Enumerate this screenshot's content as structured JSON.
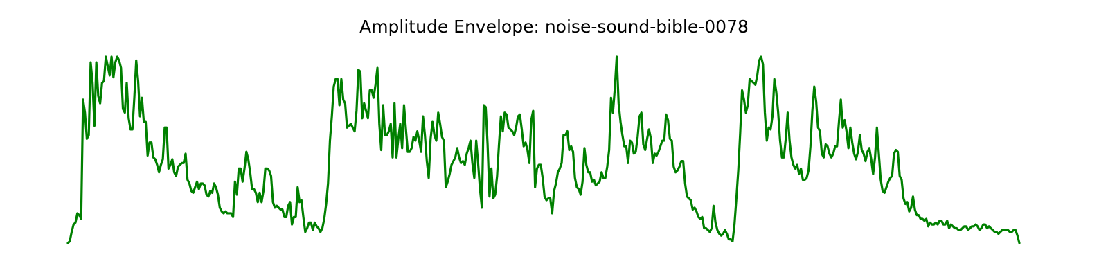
{
  "chart_data": {
    "type": "line",
    "title": "Amplitude Envelope: noise-sound-bible-0078",
    "xlabel": "",
    "ylabel": "",
    "axes_visible": false,
    "grid": false,
    "legend": "none",
    "ylim": [
      0,
      1
    ],
    "series": [
      {
        "color": "#008000",
        "values": [
          0.0,
          0.01,
          0.06,
          0.1,
          0.11,
          0.16,
          0.15,
          0.13,
          0.77,
          0.7,
          0.56,
          0.58,
          0.97,
          0.86,
          0.63,
          0.97,
          0.79,
          0.75,
          0.86,
          0.87,
          1.0,
          0.95,
          0.9,
          1.0,
          0.89,
          0.97,
          1.0,
          0.98,
          0.94,
          0.72,
          0.7,
          0.86,
          0.67,
          0.61,
          0.61,
          0.78,
          0.98,
          0.87,
          0.68,
          0.78,
          0.65,
          0.65,
          0.47,
          0.54,
          0.54,
          0.46,
          0.45,
          0.42,
          0.38,
          0.42,
          0.45,
          0.62,
          0.62,
          0.4,
          0.42,
          0.45,
          0.38,
          0.36,
          0.41,
          0.42,
          0.43,
          0.43,
          0.48,
          0.34,
          0.32,
          0.28,
          0.27,
          0.3,
          0.33,
          0.29,
          0.32,
          0.32,
          0.31,
          0.26,
          0.25,
          0.28,
          0.27,
          0.32,
          0.3,
          0.26,
          0.19,
          0.17,
          0.16,
          0.17,
          0.16,
          0.16,
          0.16,
          0.14,
          0.33,
          0.26,
          0.4,
          0.4,
          0.33,
          0.4,
          0.49,
          0.45,
          0.38,
          0.29,
          0.29,
          0.27,
          0.22,
          0.27,
          0.22,
          0.28,
          0.4,
          0.4,
          0.39,
          0.36,
          0.22,
          0.19,
          0.2,
          0.19,
          0.18,
          0.18,
          0.14,
          0.14,
          0.2,
          0.22,
          0.1,
          0.14,
          0.14,
          0.3,
          0.22,
          0.23,
          0.14,
          0.06,
          0.08,
          0.11,
          0.11,
          0.07,
          0.11,
          0.09,
          0.08,
          0.06,
          0.08,
          0.13,
          0.21,
          0.32,
          0.55,
          0.68,
          0.84,
          0.88,
          0.88,
          0.74,
          0.88,
          0.77,
          0.75,
          0.62,
          0.63,
          0.64,
          0.62,
          0.6,
          0.71,
          0.93,
          0.92,
          0.67,
          0.75,
          0.71,
          0.67,
          0.82,
          0.82,
          0.78,
          0.85,
          0.94,
          0.64,
          0.5,
          0.74,
          0.58,
          0.58,
          0.6,
          0.64,
          0.46,
          0.75,
          0.46,
          0.56,
          0.64,
          0.51,
          0.74,
          0.61,
          0.49,
          0.49,
          0.51,
          0.57,
          0.55,
          0.6,
          0.55,
          0.49,
          0.68,
          0.58,
          0.44,
          0.35,
          0.56,
          0.65,
          0.58,
          0.55,
          0.7,
          0.64,
          0.57,
          0.55,
          0.3,
          0.33,
          0.37,
          0.42,
          0.44,
          0.46,
          0.51,
          0.46,
          0.43,
          0.44,
          0.42,
          0.48,
          0.51,
          0.55,
          0.43,
          0.35,
          0.55,
          0.43,
          0.29,
          0.19,
          0.74,
          0.73,
          0.53,
          0.25,
          0.4,
          0.24,
          0.26,
          0.36,
          0.53,
          0.68,
          0.6,
          0.7,
          0.69,
          0.62,
          0.61,
          0.6,
          0.58,
          0.62,
          0.68,
          0.69,
          0.61,
          0.52,
          0.54,
          0.5,
          0.43,
          0.66,
          0.71,
          0.3,
          0.4,
          0.42,
          0.42,
          0.35,
          0.25,
          0.23,
          0.24,
          0.24,
          0.16,
          0.28,
          0.32,
          0.38,
          0.4,
          0.43,
          0.58,
          0.58,
          0.6,
          0.5,
          0.52,
          0.49,
          0.35,
          0.3,
          0.29,
          0.26,
          0.33,
          0.51,
          0.42,
          0.38,
          0.38,
          0.33,
          0.34,
          0.31,
          0.32,
          0.33,
          0.38,
          0.35,
          0.35,
          0.41,
          0.5,
          0.78,
          0.7,
          0.83,
          1.0,
          0.75,
          0.65,
          0.58,
          0.52,
          0.52,
          0.43,
          0.55,
          0.54,
          0.48,
          0.49,
          0.57,
          0.68,
          0.7,
          0.53,
          0.5,
          0.56,
          0.61,
          0.56,
          0.43,
          0.48,
          0.47,
          0.49,
          0.52,
          0.55,
          0.55,
          0.69,
          0.66,
          0.56,
          0.55,
          0.41,
          0.38,
          0.39,
          0.41,
          0.44,
          0.44,
          0.32,
          0.25,
          0.24,
          0.23,
          0.18,
          0.19,
          0.17,
          0.14,
          0.13,
          0.14,
          0.08,
          0.08,
          0.07,
          0.06,
          0.08,
          0.2,
          0.11,
          0.07,
          0.05,
          0.04,
          0.05,
          0.07,
          0.05,
          0.02,
          0.02,
          0.01,
          0.1,
          0.24,
          0.39,
          0.59,
          0.82,
          0.77,
          0.7,
          0.74,
          0.88,
          0.87,
          0.86,
          0.85,
          0.9,
          0.98,
          1.0,
          0.96,
          0.7,
          0.55,
          0.62,
          0.61,
          0.68,
          0.88,
          0.81,
          0.7,
          0.55,
          0.46,
          0.46,
          0.56,
          0.7,
          0.55,
          0.46,
          0.42,
          0.4,
          0.42,
          0.37,
          0.4,
          0.34,
          0.34,
          0.35,
          0.39,
          0.52,
          0.71,
          0.84,
          0.76,
          0.62,
          0.6,
          0.48,
          0.46,
          0.53,
          0.52,
          0.48,
          0.46,
          0.48,
          0.52,
          0.52,
          0.65,
          0.77,
          0.62,
          0.66,
          0.6,
          0.51,
          0.62,
          0.54,
          0.48,
          0.45,
          0.49,
          0.58,
          0.5,
          0.48,
          0.44,
          0.49,
          0.51,
          0.45,
          0.37,
          0.46,
          0.62,
          0.48,
          0.34,
          0.28,
          0.27,
          0.3,
          0.33,
          0.35,
          0.36,
          0.48,
          0.5,
          0.49,
          0.36,
          0.34,
          0.24,
          0.21,
          0.22,
          0.17,
          0.19,
          0.25,
          0.18,
          0.15,
          0.15,
          0.13,
          0.13,
          0.12,
          0.13,
          0.09,
          0.11,
          0.1,
          0.1,
          0.11,
          0.1,
          0.12,
          0.12,
          0.1,
          0.1,
          0.12,
          0.08,
          0.1,
          0.09,
          0.08,
          0.08,
          0.07,
          0.07,
          0.08,
          0.09,
          0.09,
          0.07,
          0.08,
          0.09,
          0.09,
          0.1,
          0.09,
          0.07,
          0.08,
          0.1,
          0.1,
          0.08,
          0.09,
          0.08,
          0.07,
          0.06,
          0.06,
          0.05,
          0.06,
          0.07,
          0.07,
          0.07,
          0.07,
          0.06,
          0.06,
          0.07,
          0.07,
          0.04,
          0.0
        ]
      }
    ]
  }
}
